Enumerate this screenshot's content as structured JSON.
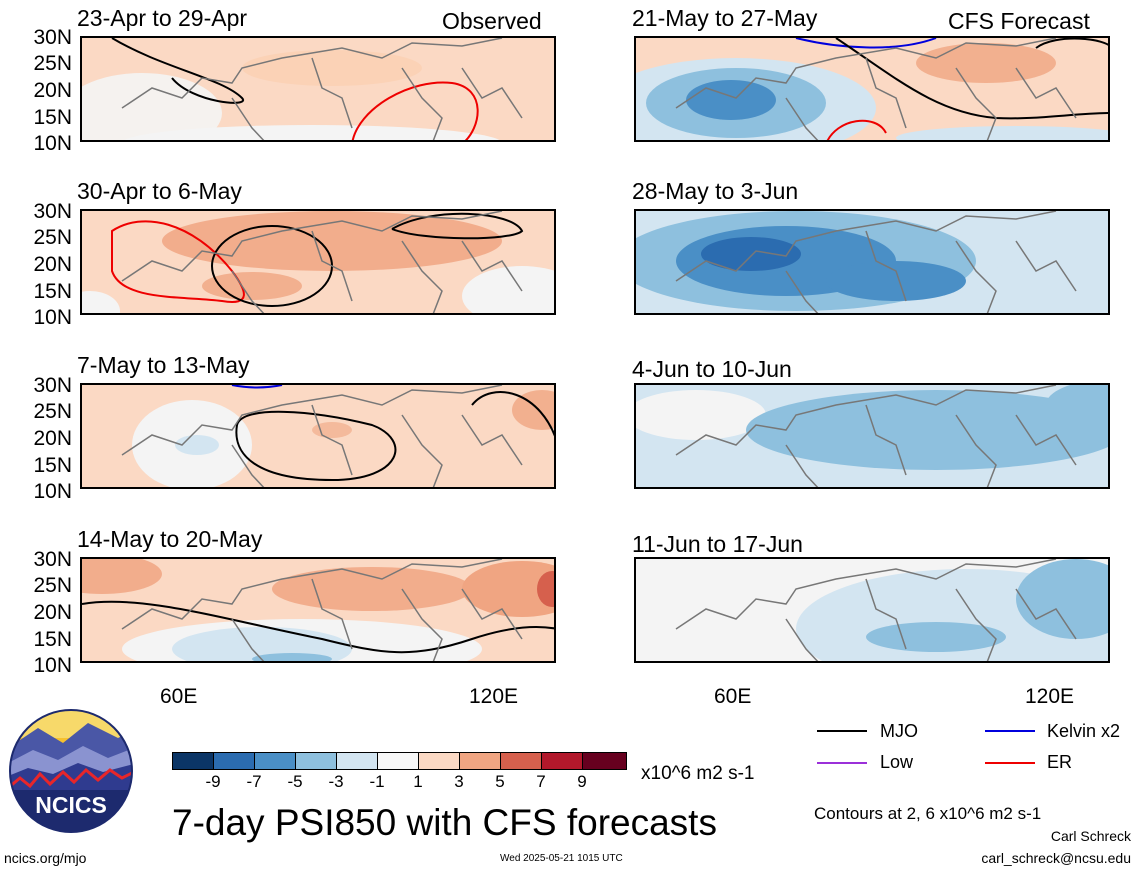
{
  "header": {
    "observed_label": "Observed",
    "forecast_label": "CFS Forecast"
  },
  "lat_labels": [
    "30N",
    "25N",
    "20N",
    "15N",
    "10N"
  ],
  "lon_labels": [
    "60E",
    "120E"
  ],
  "panels": {
    "p1": {
      "period": "23-Apr to 29-Apr"
    },
    "p2": {
      "period": "30-Apr to 6-May"
    },
    "p3": {
      "period": "7-May to 13-May"
    },
    "p4": {
      "period": "14-May to 20-May"
    },
    "p5": {
      "period": "21-May to 27-May"
    },
    "p6": {
      "period": "28-May to 3-Jun"
    },
    "p7": {
      "period": "4-Jun to 10-Jun"
    },
    "p8": {
      "period": "11-Jun to 17-Jun"
    }
  },
  "colorbar": {
    "ticks": [
      "-9",
      "-7",
      "-5",
      "-3",
      "-1",
      "1",
      "3",
      "5",
      "7",
      "9"
    ],
    "units": "x10^6 m2 s-1",
    "colors": [
      "#0b3566",
      "#2b6cb0",
      "#4a8fc6",
      "#8ec0de",
      "#d3e5f1",
      "#f7f7f7",
      "#fbd9c4",
      "#f0a582",
      "#d6604d",
      "#b2182b",
      "#67001f"
    ]
  },
  "legend": {
    "mjo": "MJO",
    "kelvin": "Kelvin x2",
    "low": "Low",
    "er": "ER",
    "colors": {
      "mjo": "#000000",
      "kelvin": "#0000dd",
      "low": "#9b30d9",
      "er": "#ee0000"
    }
  },
  "footer": {
    "main_title": "7-day PSI850 with CFS forecasts",
    "logo_text": "NCICS",
    "url": "ncics.org/mjo",
    "timestamp": "Wed 2025-05-21 1015 UTC",
    "contours_note": "Contours at 2, 6 x10^6 m2 s-1",
    "author": "Carl Schreck",
    "email": "carl_schreck@ncsu.edu"
  }
}
